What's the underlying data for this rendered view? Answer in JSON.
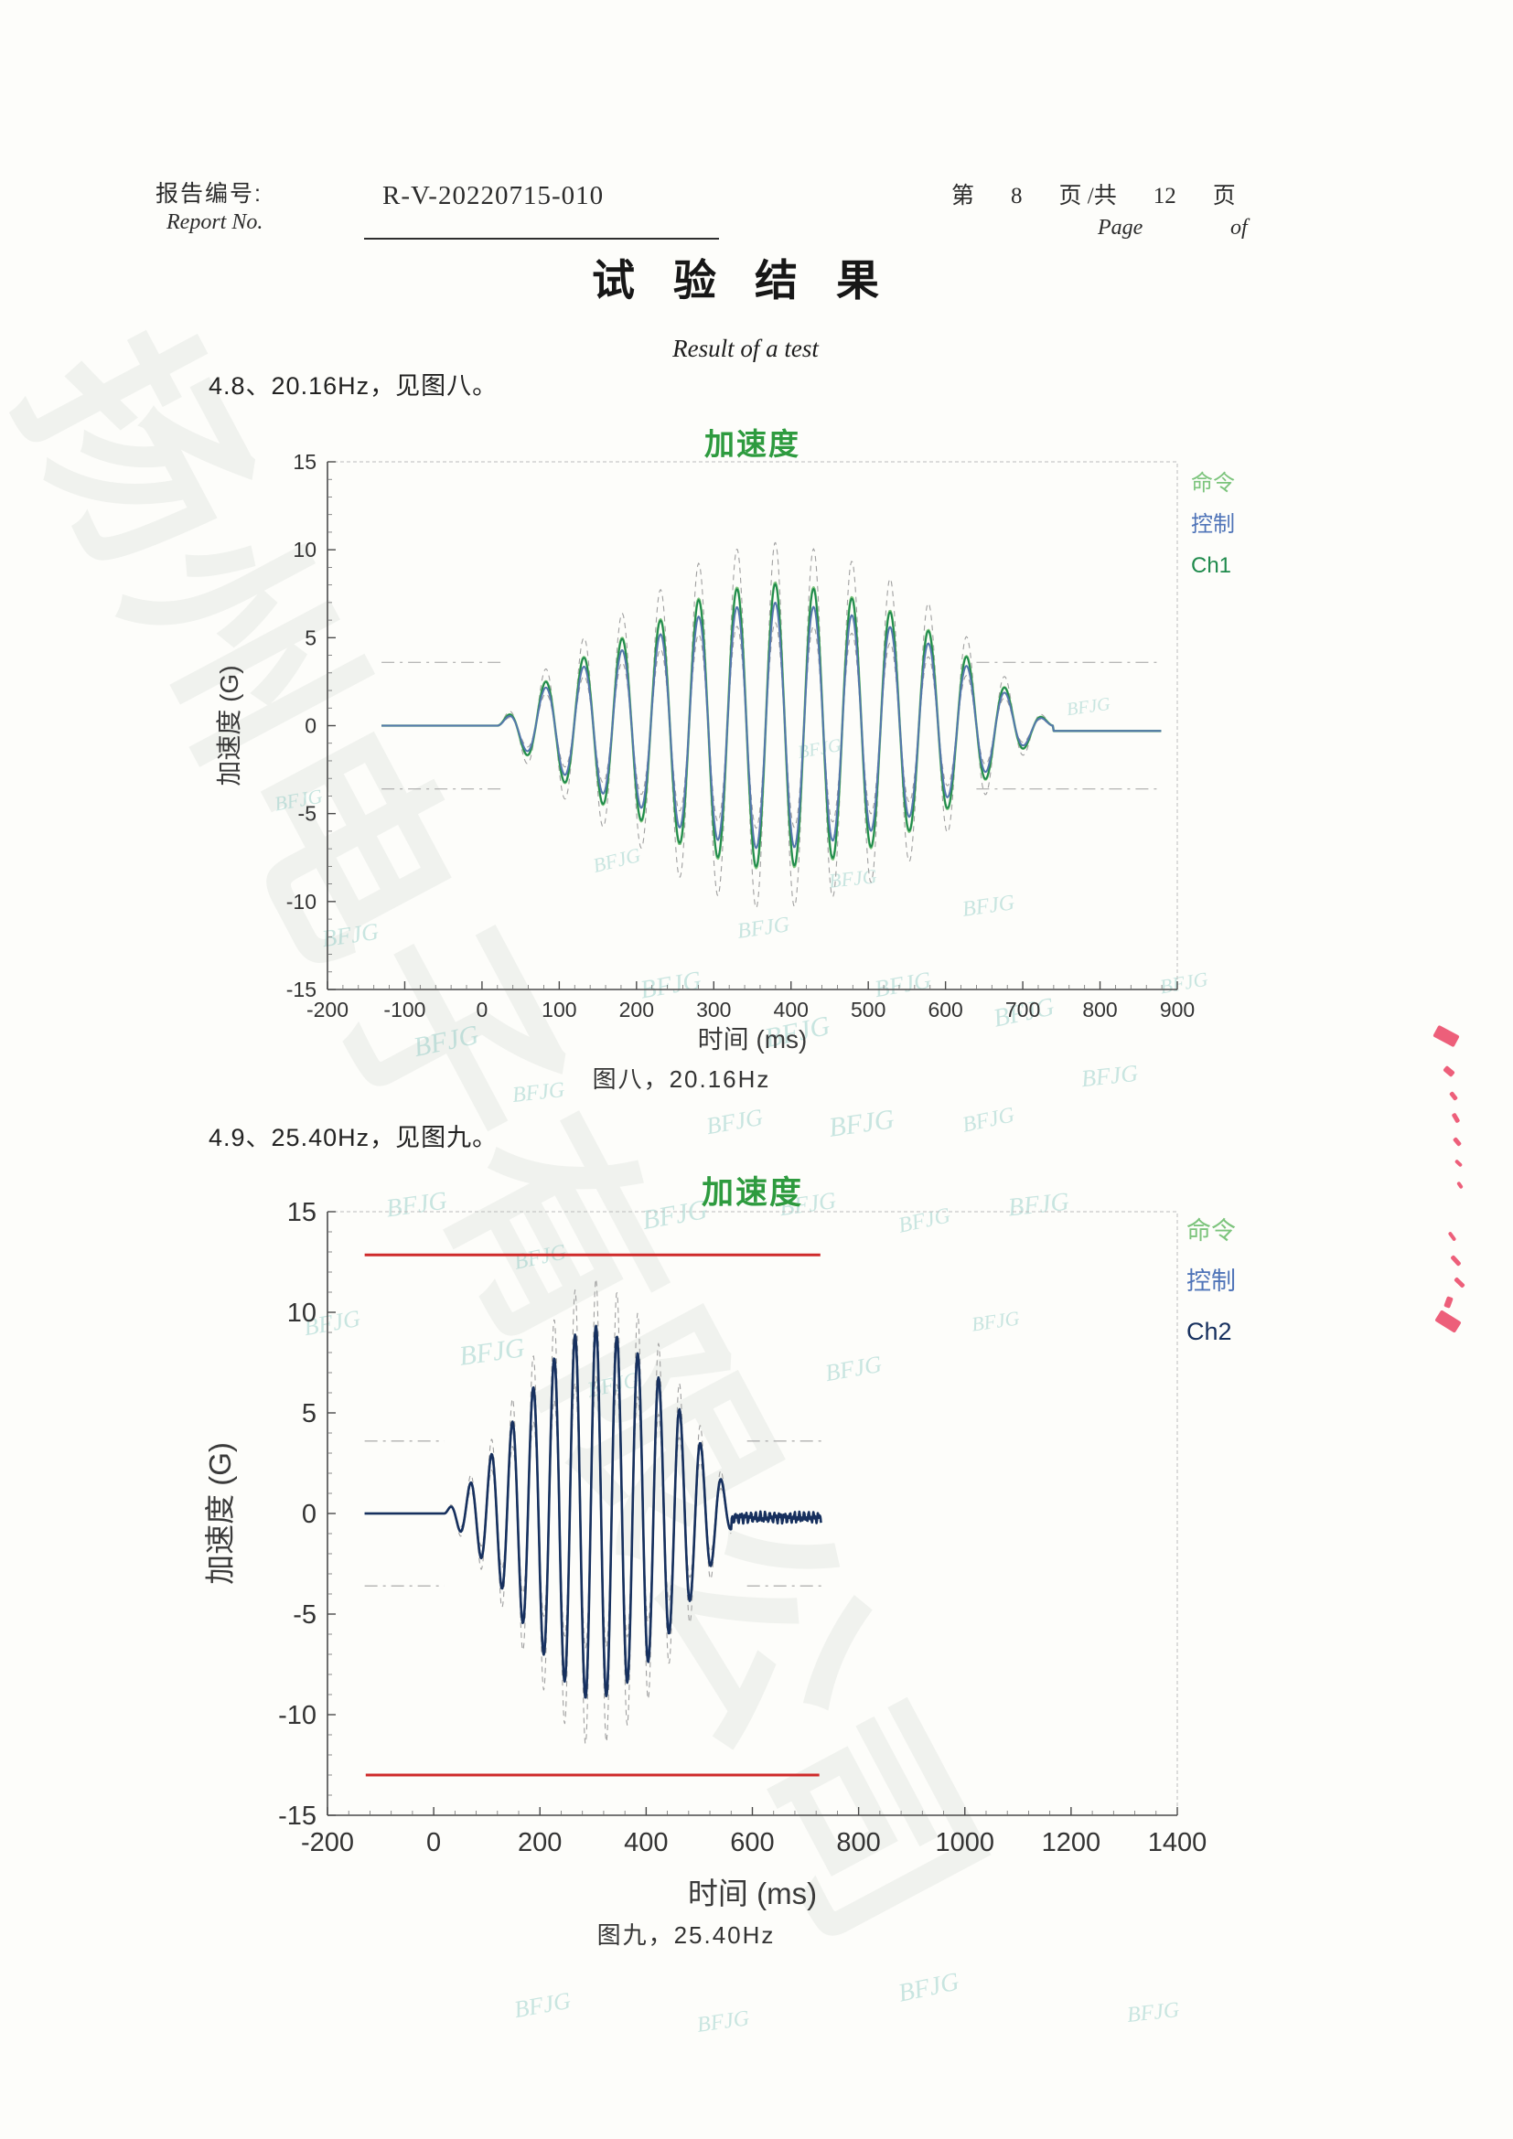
{
  "page": {
    "header": {
      "report_label_cn": "报告编号:",
      "report_label_en": "Report No.",
      "report_no_value": "R-V-20220715-010",
      "page_prefix": "第",
      "page_number": "8",
      "page_mid": "页 /共",
      "page_total": "12",
      "page_suffix": "页",
      "page_en": "Page",
      "of_en": "of"
    },
    "title_cn": "试验结果",
    "title_en": "Result of a test",
    "sections": [
      {
        "heading": "4.8、20.16Hz，见图八。"
      },
      {
        "heading": "4.9、25.40Hz，见图九。"
      }
    ],
    "watermark_large": "扬州电子有限公司",
    "watermark_small": "BFJG"
  },
  "colors": {
    "accent_green": "#2e9b3f",
    "command_green": "#7cc47c",
    "control_blue": "#4f74b8",
    "ch1_green": "#1f8a4c",
    "ch2_navy": "#17305e",
    "tolerance_gray": "#a0a0a0",
    "abort_red": "#cf2a2a",
    "seal_red": "#e8375a"
  },
  "chart_data": [
    {
      "type": "line",
      "title": "加速度",
      "xlabel": "时间 (ms)",
      "ylabel": "加速度 (G)",
      "caption": "图八，20.16Hz",
      "xlim": [
        -200,
        900
      ],
      "ylim": [
        -15,
        15
      ],
      "xticks": [
        -200,
        -100,
        0,
        100,
        200,
        300,
        400,
        500,
        600,
        700,
        800,
        900
      ],
      "yticks": [
        -15,
        -10,
        -5,
        0,
        5,
        10,
        15
      ],
      "x_minor_step": 20,
      "y_minor_step": 1,
      "grid": false,
      "legend_position": "outside-top-right",
      "legend": [
        {
          "label": "命令",
          "color": "#7cc47c"
        },
        {
          "label": "控制",
          "color": "#4f74b8"
        },
        {
          "label": "Ch1",
          "color": "#1f8a4c"
        }
      ],
      "signal": {
        "frequency_hz": 20.16,
        "start_ms": 20,
        "end_ms": 740,
        "flat_start_ms": -130,
        "flat_end_ms": 880,
        "baseline_after_g": -0.3,
        "envelope_ms_g": [
          [
            20,
            0
          ],
          [
            65,
            2.0
          ],
          [
            115,
            3.5
          ],
          [
            165,
            4.7
          ],
          [
            215,
            5.6
          ],
          [
            265,
            7.0
          ],
          [
            315,
            7.7
          ],
          [
            365,
            8.2
          ],
          [
            415,
            8.0
          ],
          [
            465,
            7.5
          ],
          [
            515,
            6.8
          ],
          [
            565,
            5.8
          ],
          [
            615,
            4.4
          ],
          [
            665,
            2.6
          ],
          [
            710,
            1.0
          ],
          [
            740,
            0
          ]
        ],
        "series": [
          {
            "name": "命令",
            "scale": 1.0,
            "color": "#7cc47c",
            "width": 2.6
          },
          {
            "name": "Ch1",
            "scale": 0.99,
            "color": "#1f8a4c",
            "width": 1.9
          },
          {
            "name": "控制",
            "scale": 0.86,
            "color": "#5577ad",
            "width": 2.0
          }
        ]
      },
      "tolerance": {
        "outer_scale": 1.28,
        "inner_scale": 0.72,
        "floor_g": 3.6,
        "floor_segments_ms": [
          [
            -130,
            25
          ],
          [
            640,
            880
          ]
        ],
        "color": "#a0a0a0"
      }
    },
    {
      "type": "line",
      "title": "加速度",
      "xlabel": "时间 (ms)",
      "ylabel": "加速度 (G)",
      "caption": "图九，25.40Hz",
      "xlim": [
        -200,
        1400
      ],
      "ylim": [
        -15,
        15
      ],
      "xticks": [
        -200,
        0,
        200,
        400,
        600,
        800,
        1000,
        1200,
        1400
      ],
      "yticks": [
        -15,
        -10,
        -5,
        0,
        5,
        10,
        15
      ],
      "x_minor_step": 40,
      "y_minor_step": 1,
      "grid": false,
      "legend_position": "outside-top-right",
      "legend": [
        {
          "label": "命令",
          "color": "#7cc47c"
        },
        {
          "label": "控制",
          "color": "#4f74b8"
        },
        {
          "label": "Ch2",
          "color": "#17305e"
        }
      ],
      "signal": {
        "frequency_hz": 25.4,
        "start_ms": 20,
        "end_ms": 560,
        "flat_start_ms": -130,
        "flat_end_ms": 730,
        "baseline_after_g": -0.2,
        "tail_ripple": {
          "end_ms": 730,
          "amp_g": 0.3
        },
        "envelope_ms_g": [
          [
            20,
            0
          ],
          [
            60,
            1.2
          ],
          [
            100,
            2.6
          ],
          [
            140,
            4.2
          ],
          [
            180,
            6.0
          ],
          [
            220,
            7.5
          ],
          [
            260,
            8.8
          ],
          [
            300,
            9.4
          ],
          [
            340,
            8.9
          ],
          [
            380,
            8.1
          ],
          [
            420,
            6.9
          ],
          [
            460,
            5.3
          ],
          [
            500,
            3.6
          ],
          [
            535,
            2.0
          ],
          [
            560,
            0.8
          ]
        ],
        "series": [
          {
            "name": "命令",
            "scale": 1.0,
            "color": "#7cc47c",
            "width": 2.2
          },
          {
            "name": "控制",
            "scale": 0.97,
            "color": "#4f74b8",
            "width": 2.2
          },
          {
            "name": "Ch2",
            "scale": 1.0,
            "color": "#17305e",
            "width": 2.6
          }
        ]
      },
      "tolerance": {
        "outer_scale": 1.25,
        "inner_scale": 0.73,
        "floor_g": 3.6,
        "floor_segments_ms": [
          [
            -130,
            20
          ],
          [
            590,
            730
          ]
        ],
        "color": "#a0a0a0"
      },
      "abort_lines": {
        "color": "#cf2a2a",
        "width": 3,
        "lines": [
          {
            "y": 12.85,
            "x0": -130,
            "x1": 728
          },
          {
            "y": -13.0,
            "x0": -128,
            "x1": 726
          }
        ]
      }
    }
  ]
}
